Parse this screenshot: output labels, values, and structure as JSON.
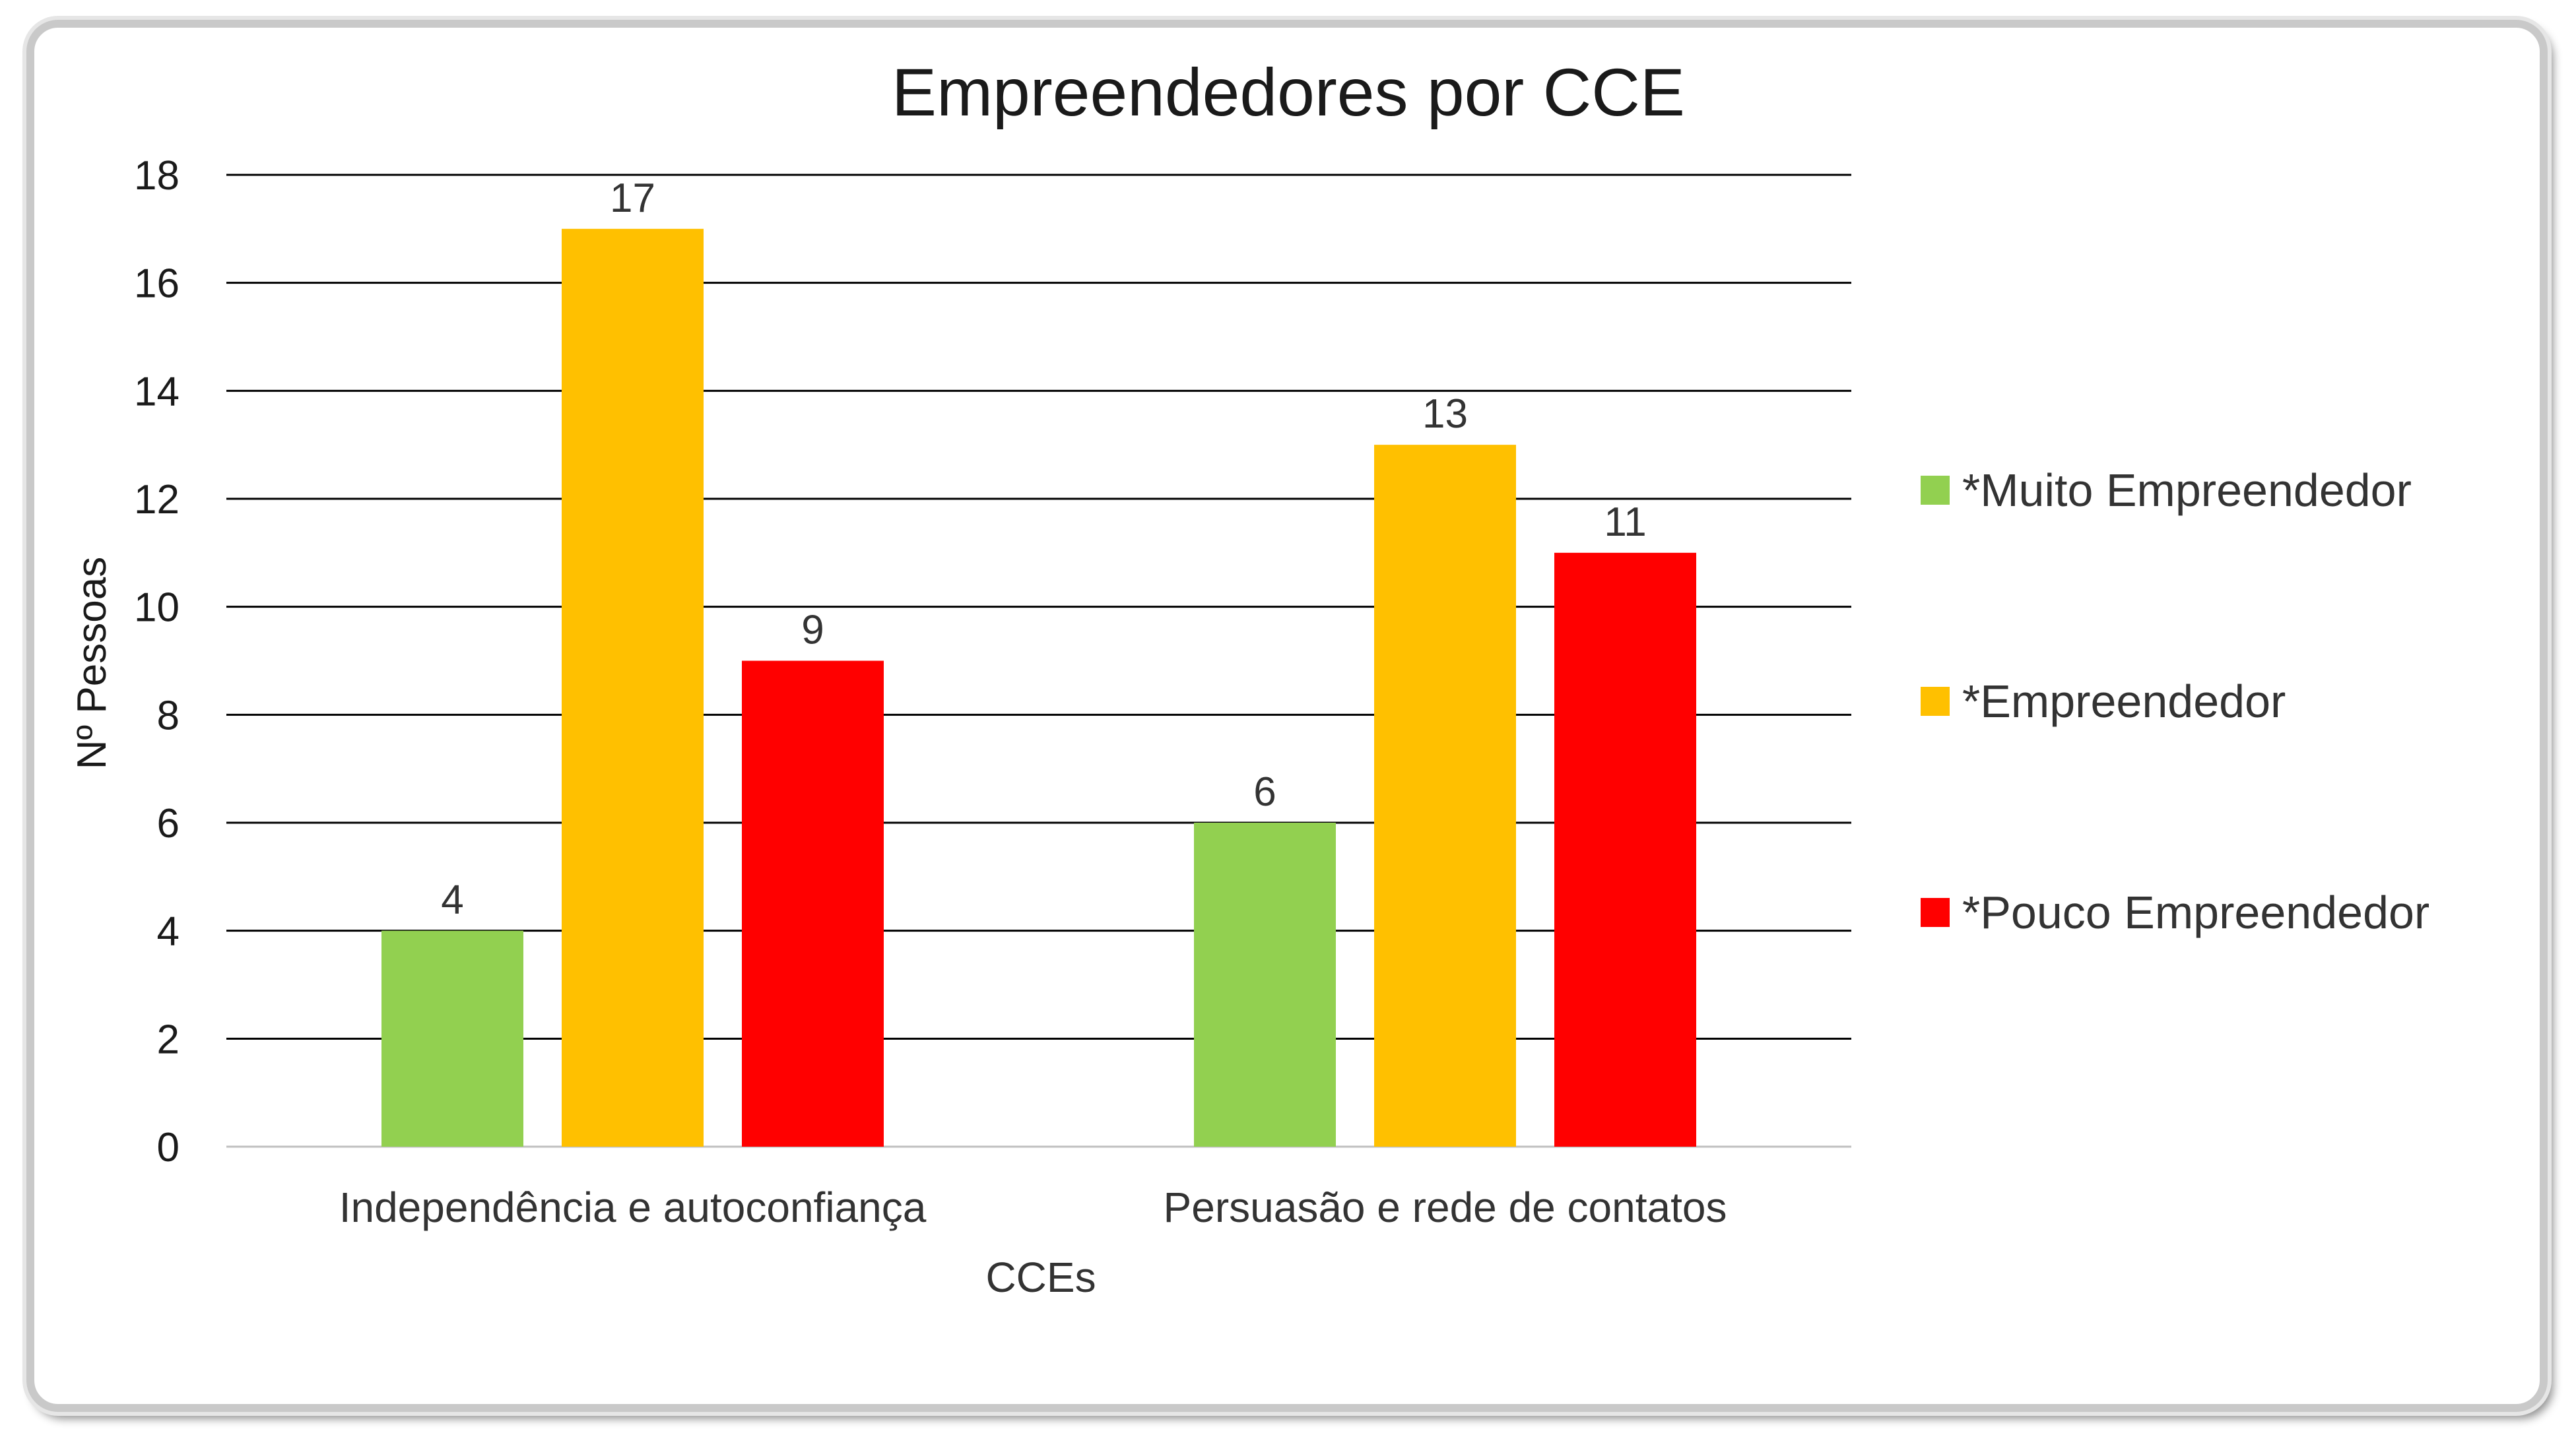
{
  "chart_data": {
    "type": "bar",
    "title": "Empreendedores por CCE",
    "xlabel": "CCEs",
    "ylabel": "Nº Pessoas",
    "categories": [
      "Independência e autoconfiança",
      "Persuasão e rede de contatos"
    ],
    "series": [
      {
        "name": "*Muito Empreendedor",
        "color": "#92d050",
        "values": [
          4,
          6
        ]
      },
      {
        "name": "*Empreendedor",
        "color": "#ffc000",
        "values": [
          17,
          13
        ]
      },
      {
        "name": "*Pouco Empreendedor",
        "color": "#ff0000",
        "values": [
          9,
          11
        ]
      }
    ],
    "ylim": [
      0,
      18
    ],
    "yticks": [
      0,
      2,
      4,
      6,
      8,
      10,
      12,
      14,
      16,
      18
    ],
    "grid": true,
    "legend": "right"
  }
}
